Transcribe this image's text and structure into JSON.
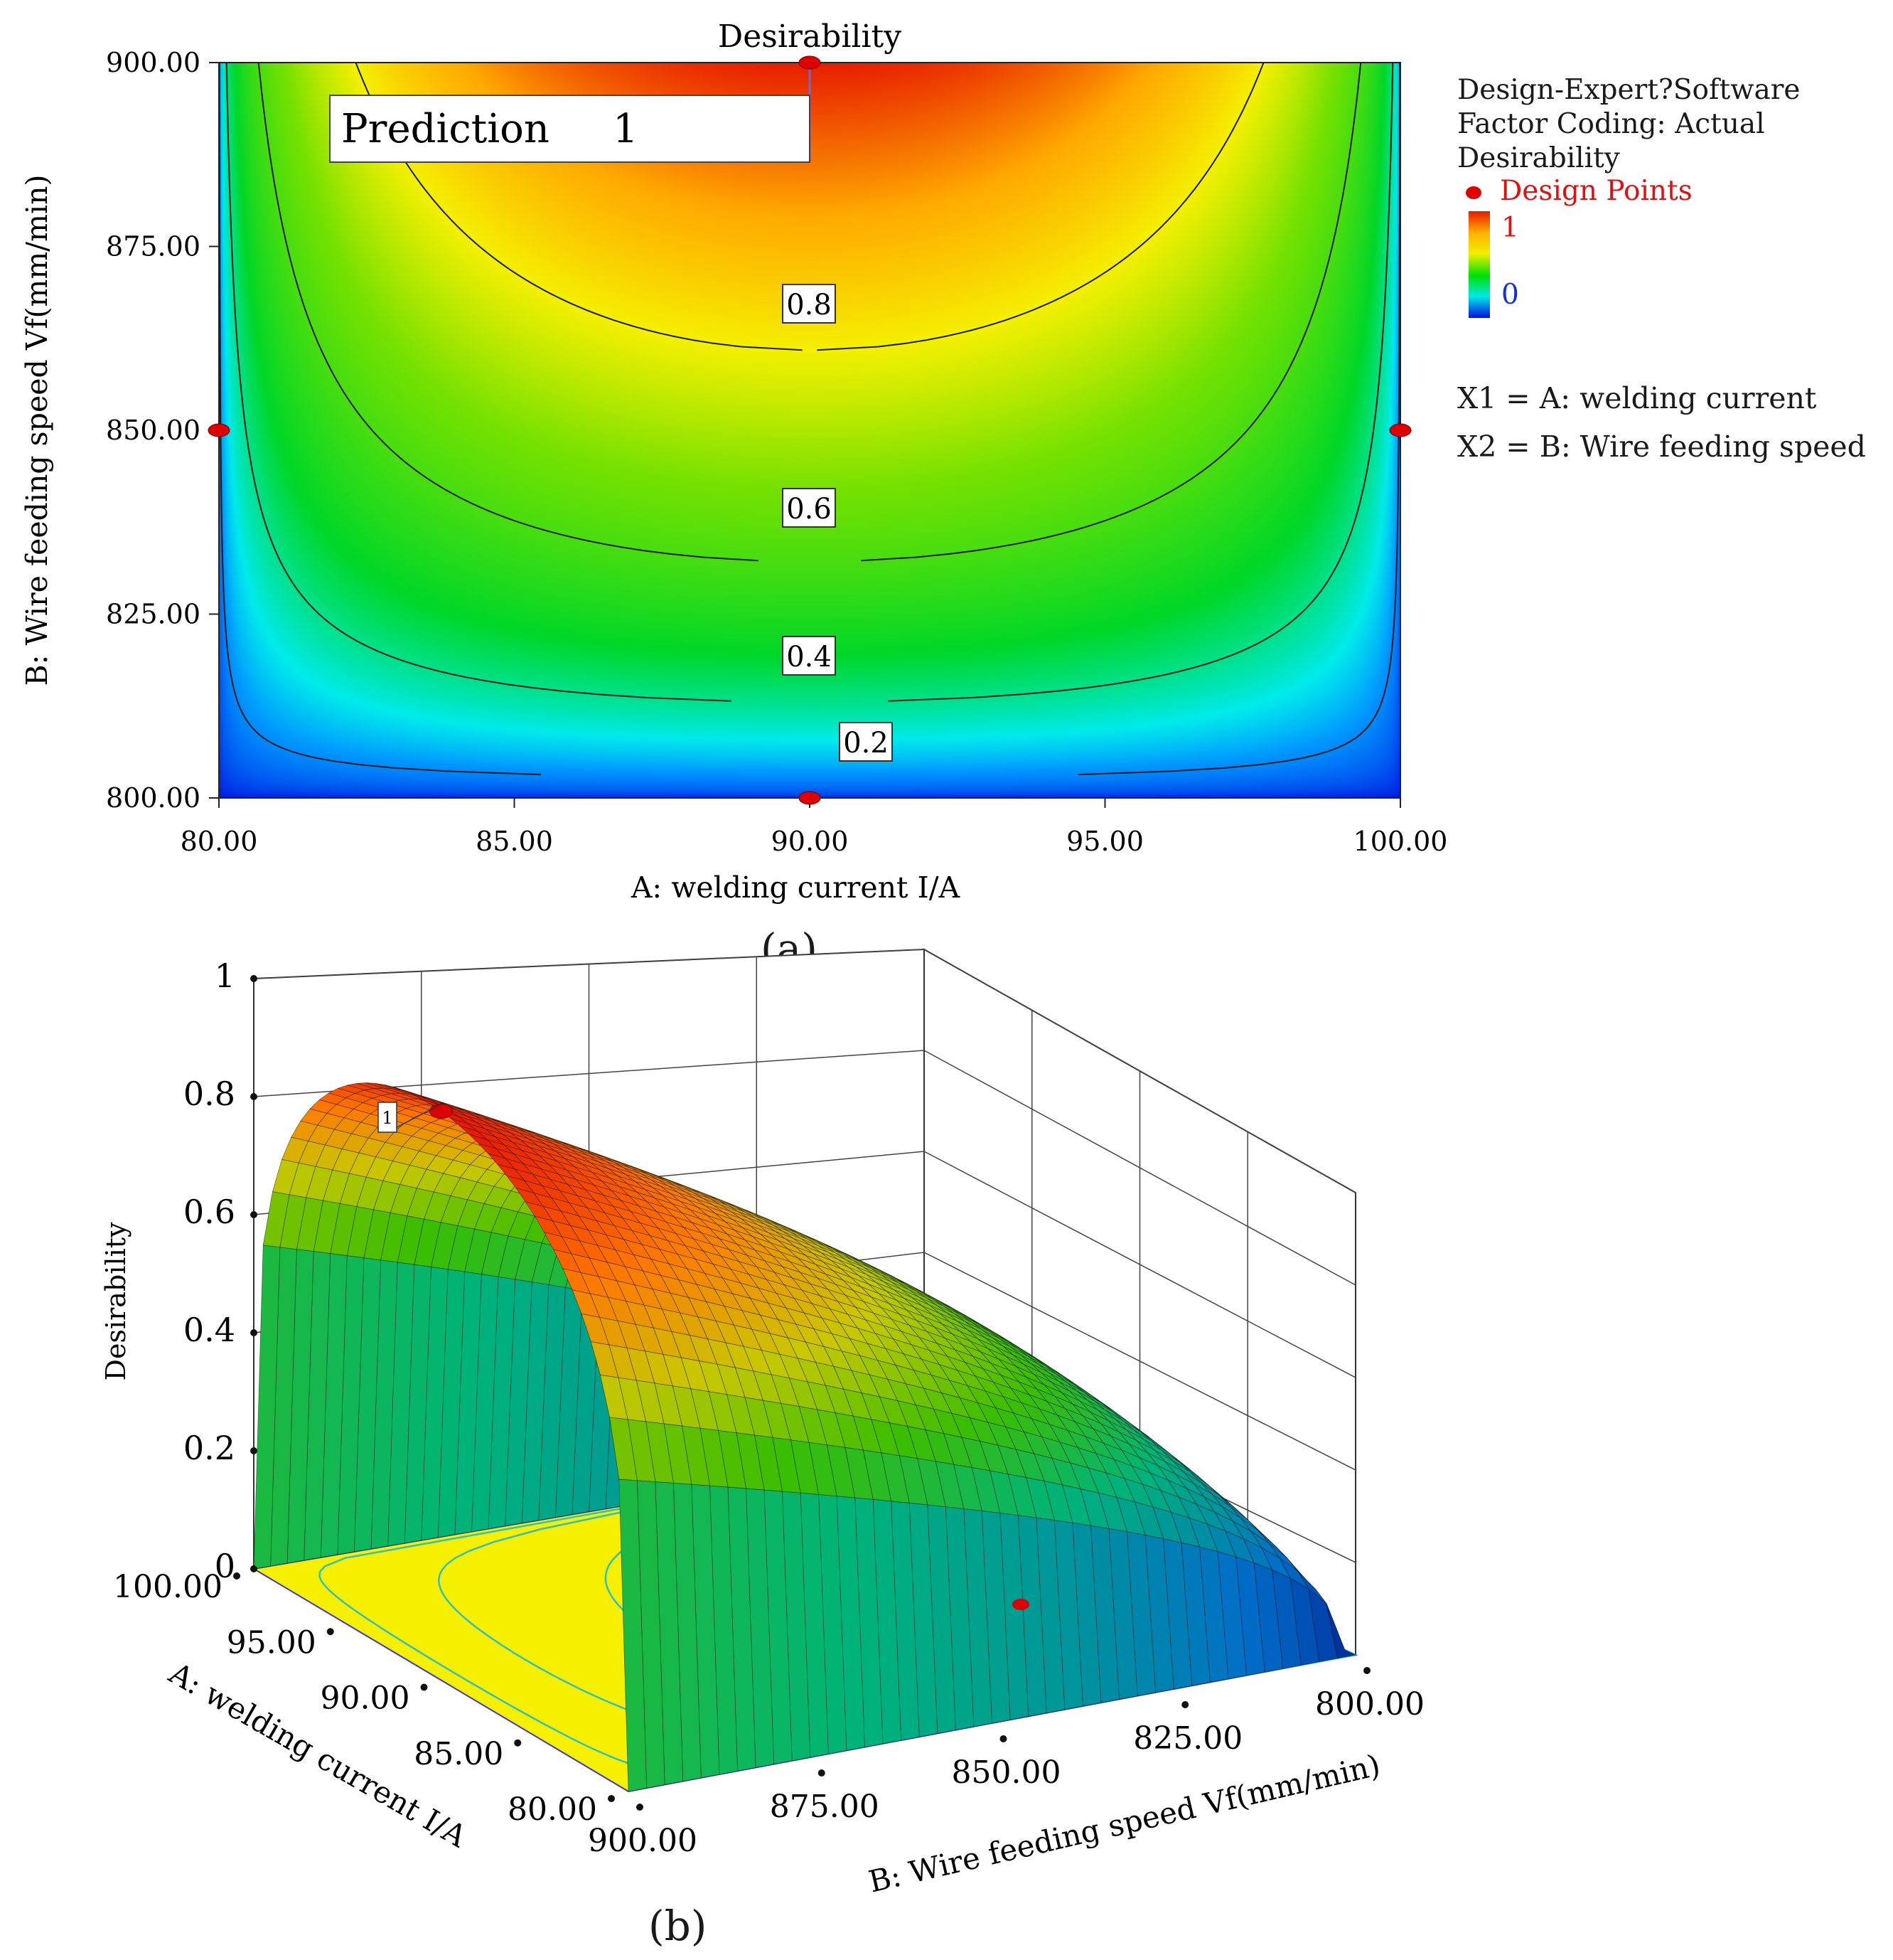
{
  "chart_data": [
    {
      "panel": "a",
      "type": "contour",
      "title": "Desirability",
      "xlabel": "A: welding current I/A",
      "ylabel": "B: Wire feeding speed Vf(mm/min)",
      "xlim": [
        80,
        100
      ],
      "ylim": [
        800,
        900
      ],
      "x_ticks": [
        "80.00",
        "85.00",
        "90.00",
        "95.00",
        "100.00"
      ],
      "y_ticks": [
        "800.00",
        "825.00",
        "850.00",
        "875.00",
        "900.00"
      ],
      "contour_levels": [
        0.2,
        0.4,
        0.6,
        0.8
      ],
      "contour_labels": [
        "0.2",
        "0.4",
        "0.6",
        "0.8"
      ],
      "prediction": {
        "label": "Prediction",
        "value": "1",
        "x": 90,
        "y": 900
      },
      "design_points": [
        {
          "x": 80,
          "y": 850
        },
        {
          "x": 100,
          "y": 850
        },
        {
          "x": 90,
          "y": 800
        },
        {
          "x": 90,
          "y": 900
        }
      ],
      "legend": {
        "software": "Design-Expert?Software",
        "coding": "Factor Coding: Actual",
        "response": "Desirability",
        "design_points_label": "Design Points",
        "scale_max": "1",
        "scale_min": "0",
        "x1": "X1 = A: welding current",
        "x2": "X2 = B: Wire feeding speed"
      },
      "colors": {
        "low": "#0010e0",
        "mid": "#00e000",
        "high": "#e81800",
        "design_point": "#dd0000"
      }
    },
    {
      "panel": "b",
      "type": "surface",
      "zlabel": "Desirability",
      "xlabel": "A: welding current I/A",
      "ylabel": "B: Wire feeding speed Vf(mm/min)",
      "z_ticks": [
        "0",
        "0.2",
        "0.4",
        "0.6",
        "0.8",
        "1"
      ],
      "x_ticks": [
        "80.00",
        "85.00",
        "90.00",
        "95.00",
        "100.00"
      ],
      "y_ticks": [
        "900.00",
        "875.00",
        "850.00",
        "825.00",
        "800.00"
      ],
      "xlim": [
        80,
        100
      ],
      "ylim": [
        800,
        900
      ],
      "zlim": [
        0,
        1
      ],
      "peak_label": "1",
      "peak": {
        "x": 90,
        "y": 900,
        "z": 1
      },
      "floor_color": "#f5f000"
    }
  ],
  "captions": {
    "a": "(a)",
    "b": "(b)"
  }
}
